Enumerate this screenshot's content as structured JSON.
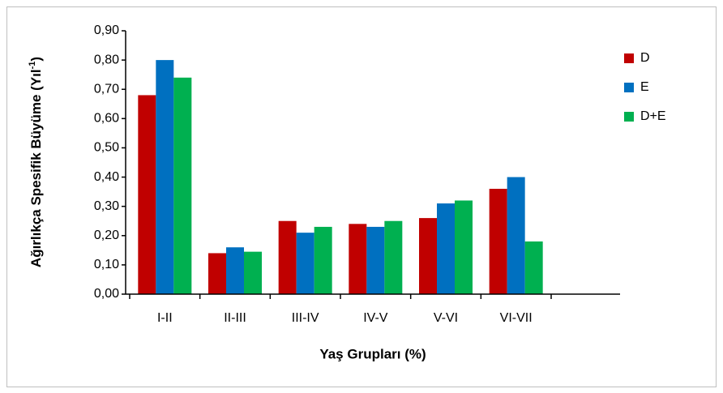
{
  "chart_data": {
    "type": "bar",
    "x_label": "Yaş Grupları (%)",
    "y_label": [
      "Ağırlıkça Spesifik Büyüme (Yıl",
      "-1",
      ")"
    ],
    "categories": [
      "I-II",
      "II-III",
      "III-IV",
      "IV-V",
      "V-VI",
      "VI-VII"
    ],
    "series": [
      {
        "name": "D",
        "color": "#c00000",
        "values": [
          0.68,
          0.14,
          0.25,
          0.24,
          0.26,
          0.36
        ]
      },
      {
        "name": "E",
        "color": "#0070c0",
        "values": [
          0.8,
          0.16,
          0.21,
          0.23,
          0.31,
          0.4
        ]
      },
      {
        "name": "D+E",
        "color": "#00b050",
        "values": [
          0.74,
          0.145,
          0.23,
          0.25,
          0.32,
          0.18
        ]
      }
    ],
    "ylim": [
      0,
      0.9
    ],
    "yticks": [
      {
        "value": 0,
        "label": "0,00"
      },
      {
        "value": 0.1,
        "label": "0,10"
      },
      {
        "value": 0.2,
        "label": "0,20"
      },
      {
        "value": 0.3,
        "label": "0,30"
      },
      {
        "value": 0.4,
        "label": "0,40"
      },
      {
        "value": 0.5,
        "label": "0,50"
      },
      {
        "value": 0.6,
        "label": "0,60"
      },
      {
        "value": 0.7,
        "label": "0,70"
      },
      {
        "value": 0.8,
        "label": "0,80"
      },
      {
        "value": 0.9,
        "label": "0,90"
      }
    ],
    "legend": "right"
  }
}
